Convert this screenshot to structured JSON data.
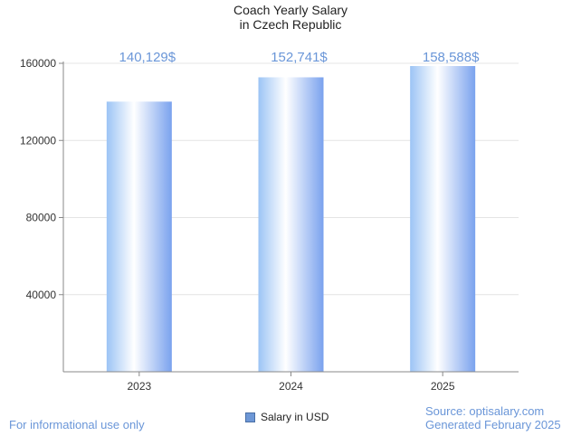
{
  "chart_data": {
    "type": "bar",
    "title": [
      "Coach Yearly Salary",
      "in Czech Republic"
    ],
    "categories": [
      "2023",
      "2024",
      "2025"
    ],
    "series": [
      {
        "name": "Salary in USD",
        "values": [
          140129,
          152741,
          158588
        ]
      }
    ],
    "data_labels": [
      "140,129$",
      "152,741$",
      "158,588$"
    ],
    "yticks": [
      40000,
      80000,
      120000,
      160000
    ],
    "ytick_labels": [
      "40000",
      "80000",
      "120000",
      "160000"
    ],
    "ylim": [
      0,
      160000
    ],
    "grid": true,
    "legend_position": "bottom-center",
    "xlabel": "",
    "ylabel": ""
  },
  "footer": {
    "disclaimer": "For informational use only",
    "source": "Source: optisalary.com",
    "generated": "Generated February 2025"
  },
  "colors": {
    "label": "#6a96d8",
    "bar_edge": "#7aa2ee",
    "bar_light": "#ffffff",
    "bar_left": "#9cc4f5",
    "grid": "#e4e4e4",
    "axis": "#888888",
    "legend_swatch": "#6d97d6"
  }
}
